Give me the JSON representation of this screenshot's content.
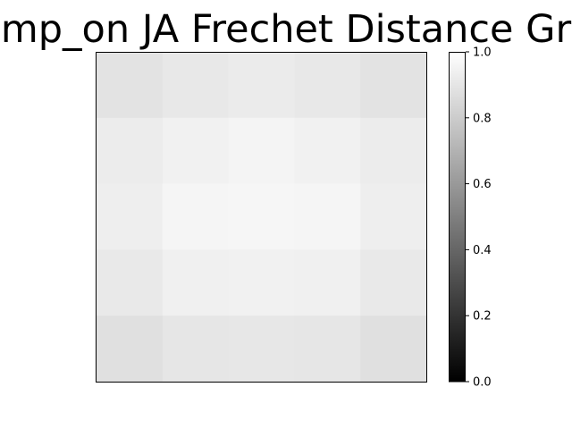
{
  "chart_data": {
    "type": "heatmap",
    "title": "mp_on JA Frechet Distance Gr",
    "colormap": "gray",
    "rows": 5,
    "cols": 5,
    "values": [
      [
        0.89,
        0.91,
        0.92,
        0.91,
        0.89
      ],
      [
        0.925,
        0.945,
        0.955,
        0.945,
        0.925
      ],
      [
        0.935,
        0.96,
        0.965,
        0.96,
        0.935
      ],
      [
        0.915,
        0.94,
        0.945,
        0.94,
        0.915
      ],
      [
        0.88,
        0.9,
        0.905,
        0.9,
        0.88
      ]
    ],
    "colorbar": {
      "range": [
        0.0,
        1.0
      ],
      "tick_labels": [
        "0.0",
        "0.2",
        "0.4",
        "0.6",
        "0.8",
        "1.0"
      ]
    },
    "x_ticks": "none",
    "y_ticks": "none",
    "grid": false
  }
}
